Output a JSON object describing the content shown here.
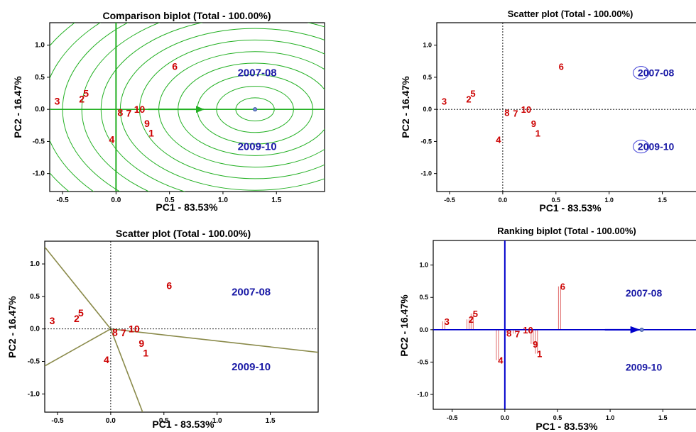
{
  "colors": {
    "genotype": "#cc0000",
    "environment": "#1a1aa6",
    "green": "#22b022",
    "olive": "#8a8a4a",
    "blue_axis": "#0000cc",
    "pink": "#e06a6a"
  },
  "chart_data": [
    {
      "type": "scatter",
      "title": "Comparison biplot (Total - 100.00%)",
      "xlabel": "PC1 - 83.53%",
      "ylabel": "PC2 - 16.47%",
      "xlim": [
        -0.62,
        1.95
      ],
      "ylim": [
        -1.28,
        1.35
      ],
      "xticks": [
        -0.5,
        0.0,
        0.5,
        1.0,
        1.5
      ],
      "yticks": [
        -1.0,
        -0.5,
        0.0,
        0.5,
        1.0
      ],
      "xtick_labels": [
        "-0.5",
        "0.0",
        "0.5",
        "1.0",
        "1.5"
      ],
      "ytick_labels": [
        "-1.0",
        "-0.5",
        "0.0",
        "0.5",
        "1.0"
      ],
      "genotypes": [
        {
          "label": "1",
          "x": 0.33,
          "y": -0.37
        },
        {
          "label": "2",
          "x": -0.32,
          "y": 0.16
        },
        {
          "label": "3",
          "x": -0.55,
          "y": 0.13
        },
        {
          "label": "4",
          "x": -0.04,
          "y": -0.47
        },
        {
          "label": "5",
          "x": -0.28,
          "y": 0.25
        },
        {
          "label": "6",
          "x": 0.55,
          "y": 0.67
        },
        {
          "label": "7",
          "x": 0.12,
          "y": -0.06
        },
        {
          "label": "8",
          "x": 0.04,
          "y": -0.05
        },
        {
          "label": "9",
          "x": 0.29,
          "y": -0.22
        },
        {
          "label": "10",
          "x": 0.22,
          "y": 0.0
        }
      ],
      "environments": [
        {
          "label": "2007-08",
          "x": 1.32,
          "y": 0.57
        },
        {
          "label": "2009-10",
          "x": 1.32,
          "y": -0.58
        }
      ],
      "ideal_point": {
        "x": 1.3,
        "y": 0.0
      },
      "circle_radii": [
        0.18,
        0.36,
        0.54,
        0.72,
        0.9,
        1.08,
        1.26,
        1.44,
        1.62,
        1.8,
        1.98,
        2.16
      ]
    },
    {
      "type": "scatter",
      "title": "Scatter plot (Total - 100.00%)",
      "xlabel": "PC1 - 83.53%",
      "ylabel": "PC2 - 16.47%",
      "xlim": [
        -0.62,
        1.95
      ],
      "ylim": [
        -1.28,
        1.35
      ],
      "xticks": [
        -0.5,
        0.0,
        0.5,
        1.0,
        1.5
      ],
      "yticks": [
        -1.0,
        -0.5,
        0.0,
        0.5,
        1.0
      ],
      "xtick_labels": [
        "-0.5",
        "0.0",
        "0.5",
        "1.0",
        "1.5"
      ],
      "ytick_labels": [
        "-1.0",
        "-0.5",
        "0.0",
        "0.5",
        "1.0"
      ],
      "genotypes": [
        {
          "label": "1",
          "x": 0.33,
          "y": -0.37
        },
        {
          "label": "2",
          "x": -0.32,
          "y": 0.16
        },
        {
          "label": "3",
          "x": -0.55,
          "y": 0.13
        },
        {
          "label": "4",
          "x": -0.04,
          "y": -0.47
        },
        {
          "label": "5",
          "x": -0.28,
          "y": 0.25
        },
        {
          "label": "6",
          "x": 0.55,
          "y": 0.67
        },
        {
          "label": "7",
          "x": 0.12,
          "y": -0.06
        },
        {
          "label": "8",
          "x": 0.04,
          "y": -0.05
        },
        {
          "label": "9",
          "x": 0.29,
          "y": -0.22
        },
        {
          "label": "10",
          "x": 0.22,
          "y": 0.0
        }
      ],
      "environments": [
        {
          "label": "2007-08",
          "x": 1.32,
          "y": 0.57
        },
        {
          "label": "2009-10",
          "x": 1.32,
          "y": -0.58
        }
      ]
    },
    {
      "type": "scatter",
      "title": "Scatter plot (Total - 100.00%)",
      "xlabel": "PC1 - 83.53%",
      "ylabel": "PC2 - 16.47%",
      "xlim": [
        -0.62,
        1.95
      ],
      "ylim": [
        -1.28,
        1.35
      ],
      "xticks": [
        -0.5,
        0.0,
        0.5,
        1.0,
        1.5
      ],
      "yticks": [
        -1.0,
        -0.5,
        0.0,
        0.5,
        1.0
      ],
      "xtick_labels": [
        "-0.5",
        "0.0",
        "0.5",
        "1.0",
        "1.5"
      ],
      "ytick_labels": [
        "-1.0",
        "-0.5",
        "0.0",
        "0.5",
        "1.0"
      ],
      "genotypes": [
        {
          "label": "1",
          "x": 0.33,
          "y": -0.37
        },
        {
          "label": "2",
          "x": -0.32,
          "y": 0.16
        },
        {
          "label": "3",
          "x": -0.55,
          "y": 0.13
        },
        {
          "label": "4",
          "x": -0.04,
          "y": -0.47
        },
        {
          "label": "5",
          "x": -0.28,
          "y": 0.25
        },
        {
          "label": "6",
          "x": 0.55,
          "y": 0.67
        },
        {
          "label": "7",
          "x": 0.12,
          "y": -0.06
        },
        {
          "label": "8",
          "x": 0.04,
          "y": -0.05
        },
        {
          "label": "9",
          "x": 0.29,
          "y": -0.22
        },
        {
          "label": "10",
          "x": 0.22,
          "y": 0.0
        }
      ],
      "environments": [
        {
          "label": "2007-08",
          "x": 1.32,
          "y": 0.57
        },
        {
          "label": "2009-10",
          "x": 1.32,
          "y": -0.58
        }
      ],
      "sector_rays": [
        {
          "x": -0.62,
          "y": 1.26
        },
        {
          "x": -0.62,
          "y": -0.57
        },
        {
          "x": 0.3,
          "y": -1.28
        },
        {
          "x": 1.95,
          "y": -0.36
        }
      ]
    },
    {
      "type": "scatter",
      "title": "Ranking biplot (Total - 100.00%)",
      "xlabel": "PC1 - 83.53%",
      "ylabel": "PC2 - 16.47%",
      "xlim": [
        -0.68,
        1.95
      ],
      "ylim": [
        -1.23,
        1.38
      ],
      "xticks": [
        -0.5,
        0.0,
        0.5,
        1.0,
        1.5
      ],
      "yticks": [
        -1.0,
        -0.5,
        0.0,
        0.5,
        1.0
      ],
      "xtick_labels": [
        "-0.5",
        "0.0",
        "0.5",
        "1.0",
        "1.5"
      ],
      "ytick_labels": [
        "-1.0",
        "-0.5",
        "0.0",
        "0.5",
        "1.0"
      ],
      "genotypes": [
        {
          "label": "1",
          "x": 0.33,
          "y": -0.37
        },
        {
          "label": "2",
          "x": -0.32,
          "y": 0.16
        },
        {
          "label": "3",
          "x": -0.55,
          "y": 0.13
        },
        {
          "label": "4",
          "x": -0.04,
          "y": -0.47
        },
        {
          "label": "5",
          "x": -0.28,
          "y": 0.25
        },
        {
          "label": "6",
          "x": 0.55,
          "y": 0.67
        },
        {
          "label": "7",
          "x": 0.12,
          "y": -0.06
        },
        {
          "label": "8",
          "x": 0.04,
          "y": -0.05
        },
        {
          "label": "9",
          "x": 0.29,
          "y": -0.22
        },
        {
          "label": "10",
          "x": 0.22,
          "y": 0.0
        }
      ],
      "environments": [
        {
          "label": "2007-08",
          "x": 1.32,
          "y": 0.57
        },
        {
          "label": "2009-10",
          "x": 1.32,
          "y": -0.58
        }
      ],
      "ideal_point": {
        "x": 1.3,
        "y": 0.0
      }
    }
  ]
}
